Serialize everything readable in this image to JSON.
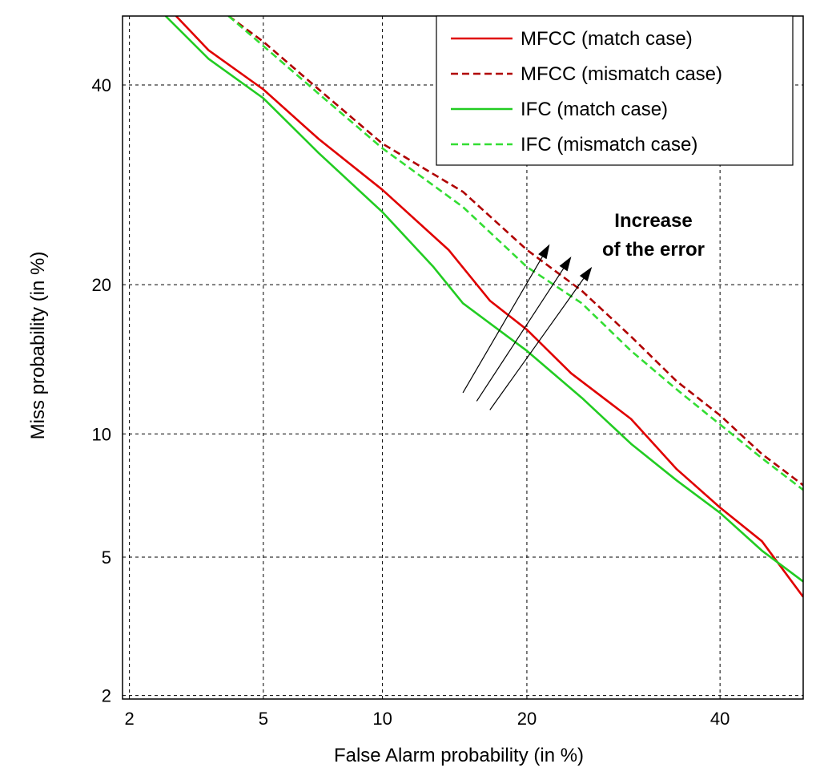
{
  "chart_data": {
    "type": "line",
    "title": "",
    "xlabel": "False Alarm probability (in %)",
    "ylabel": "Miss probability (in %)",
    "x_scale": "probit",
    "y_scale": "probit",
    "xlim": [
      1.9,
      50
    ],
    "ylim": [
      1.95,
      48
    ],
    "x_ticks": [
      2,
      5,
      10,
      20,
      40
    ],
    "y_ticks": [
      2,
      5,
      10,
      20,
      40
    ],
    "x_tick_labels": [
      "2",
      "5",
      "10",
      "20",
      "40"
    ],
    "y_tick_labels": [
      "2",
      "5",
      "10",
      "20",
      "40"
    ],
    "grid": true,
    "legend_position": "top-right",
    "series": [
      {
        "name": "MFCC (match case)",
        "color": "#e00000",
        "dash": "solid",
        "points": [
          [
            2.8,
            48
          ],
          [
            3.5,
            44
          ],
          [
            5,
            39.5
          ],
          [
            7,
            34
          ],
          [
            10,
            28.7
          ],
          [
            14,
            23
          ],
          [
            17,
            18.7
          ],
          [
            20,
            16.5
          ],
          [
            24,
            13.5
          ],
          [
            30,
            10.8
          ],
          [
            35,
            8.3
          ],
          [
            40,
            6.7
          ],
          [
            45,
            5.5
          ],
          [
            50,
            3.9
          ]
        ]
      },
      {
        "name": "MFCC (mismatch case)",
        "color": "#b00000",
        "dash": "dashed",
        "points": [
          [
            4,
            48
          ],
          [
            5,
            45
          ],
          [
            7,
            39.5
          ],
          [
            10,
            33.5
          ],
          [
            15,
            28.5
          ],
          [
            20,
            23
          ],
          [
            25,
            19.5
          ],
          [
            30,
            16
          ],
          [
            35,
            13
          ],
          [
            40,
            11
          ],
          [
            45,
            9
          ],
          [
            50,
            7.6
          ]
        ]
      },
      {
        "name": "IFC (match case)",
        "color": "#22cc22",
        "dash": "solid",
        "points": [
          [
            2.6,
            48
          ],
          [
            3.5,
            43
          ],
          [
            5,
            38.5
          ],
          [
            7,
            32.5
          ],
          [
            10,
            26.5
          ],
          [
            13,
            21.5
          ],
          [
            15,
            18.5
          ],
          [
            20,
            15
          ],
          [
            25,
            12
          ],
          [
            30,
            9.5
          ],
          [
            35,
            7.8
          ],
          [
            40,
            6.5
          ],
          [
            45,
            5.2
          ],
          [
            50,
            4.3
          ]
        ]
      },
      {
        "name": "IFC (mismatch case)",
        "color": "#33dd33",
        "dash": "dashed",
        "points": [
          [
            4,
            48
          ],
          [
            5,
            44.5
          ],
          [
            7,
            39
          ],
          [
            10,
            33
          ],
          [
            15,
            27
          ],
          [
            20,
            21.5
          ],
          [
            25,
            18.5
          ],
          [
            30,
            15
          ],
          [
            35,
            12.5
          ],
          [
            40,
            10.5
          ],
          [
            45,
            8.8
          ],
          [
            50,
            7.4
          ]
        ]
      }
    ],
    "annotation": {
      "text_lines": [
        "Increase",
        "of the error"
      ],
      "arrows": [
        {
          "from": [
            15,
            12.3
          ],
          "to": [
            22,
            23.5
          ]
        },
        {
          "from": [
            16,
            11.8
          ],
          "to": [
            24,
            22.4
          ]
        },
        {
          "from": [
            17,
            11.3
          ],
          "to": [
            26,
            21.5
          ]
        }
      ]
    }
  }
}
